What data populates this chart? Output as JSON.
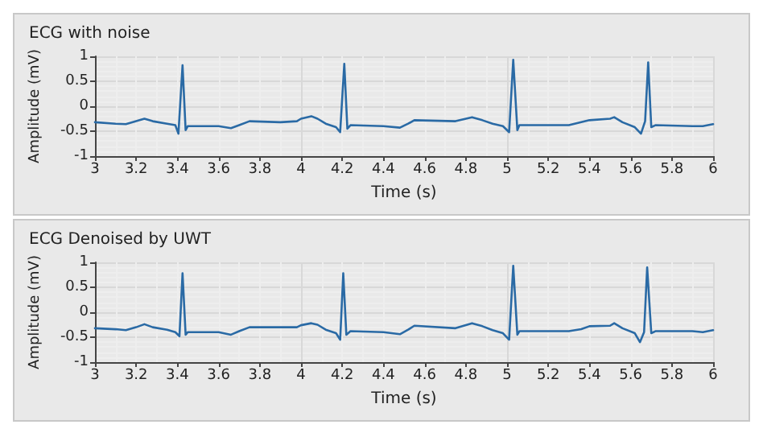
{
  "chart_data": [
    {
      "type": "line",
      "title": "ECG with noise",
      "xlabel": "Time (s)",
      "ylabel": "Amplitude (mV)",
      "xlim": [
        3,
        6
      ],
      "xticks": [
        3,
        3.2,
        3.4,
        3.6,
        3.8,
        4,
        4.2,
        4.4,
        4.6,
        4.8,
        5,
        5.2,
        5.4,
        5.6,
        5.8,
        6
      ],
      "ylim": [
        -1,
        1
      ],
      "yticks": [
        -1,
        -0.5,
        0,
        0.5,
        1
      ],
      "grid": true,
      "marker": "none",
      "line_style": "solid",
      "series": [
        {
          "color": "#2a6aa5",
          "x": [
            3.0,
            3.1,
            3.15,
            3.2,
            3.24,
            3.28,
            3.35,
            3.39,
            3.405,
            3.425,
            3.44,
            3.45,
            3.6,
            3.66,
            3.7,
            3.75,
            3.9,
            3.98,
            4.0,
            4.05,
            4.08,
            4.12,
            4.17,
            4.19,
            4.21,
            4.225,
            4.24,
            4.4,
            4.48,
            4.52,
            4.55,
            4.75,
            4.83,
            4.88,
            4.93,
            4.98,
            5.01,
            5.03,
            5.05,
            5.06,
            5.3,
            5.36,
            5.4,
            5.5,
            5.52,
            5.56,
            5.62,
            5.65,
            5.67,
            5.685,
            5.7,
            5.72,
            5.9,
            5.95,
            6.0
          ],
          "values": [
            -0.32,
            -0.35,
            -0.36,
            -0.3,
            -0.25,
            -0.3,
            -0.35,
            -0.38,
            -0.55,
            0.82,
            -0.48,
            -0.4,
            -0.4,
            -0.44,
            -0.38,
            -0.3,
            -0.32,
            -0.3,
            -0.25,
            -0.2,
            -0.25,
            -0.35,
            -0.42,
            -0.52,
            0.85,
            -0.45,
            -0.38,
            -0.4,
            -0.43,
            -0.35,
            -0.28,
            -0.3,
            -0.22,
            -0.28,
            -0.35,
            -0.4,
            -0.52,
            0.93,
            -0.48,
            -0.38,
            -0.38,
            -0.32,
            -0.28,
            -0.25,
            -0.22,
            -0.32,
            -0.42,
            -0.55,
            -0.3,
            0.88,
            -0.42,
            -0.38,
            -0.4,
            -0.4,
            -0.36
          ]
        }
      ]
    },
    {
      "type": "line",
      "title": "ECG Denoised by UWT",
      "xlabel": "Time (s)",
      "ylabel": "Amplitude (mV)",
      "xlim": [
        3,
        6
      ],
      "xticks": [
        3,
        3.2,
        3.4,
        3.6,
        3.8,
        4,
        4.2,
        4.4,
        4.6,
        4.8,
        5,
        5.2,
        5.4,
        5.6,
        5.8,
        6
      ],
      "ylim": [
        -1,
        1
      ],
      "yticks": [
        -1,
        -0.5,
        0,
        0.5,
        1
      ],
      "grid": true,
      "marker": "none",
      "line_style": "solid",
      "series": [
        {
          "color": "#2a6aa5",
          "x": [
            3.0,
            3.1,
            3.15,
            3.2,
            3.24,
            3.28,
            3.35,
            3.39,
            3.41,
            3.425,
            3.44,
            3.45,
            3.6,
            3.66,
            3.7,
            3.75,
            3.9,
            3.98,
            4.0,
            4.05,
            4.08,
            4.12,
            4.17,
            4.19,
            4.205,
            4.22,
            4.24,
            4.4,
            4.48,
            4.52,
            4.55,
            4.75,
            4.83,
            4.88,
            4.93,
            4.98,
            5.01,
            5.03,
            5.05,
            5.06,
            5.3,
            5.36,
            5.4,
            5.5,
            5.52,
            5.56,
            5.62,
            5.645,
            5.665,
            5.68,
            5.7,
            5.72,
            5.9,
            5.95,
            6.0
          ],
          "values": [
            -0.32,
            -0.34,
            -0.36,
            -0.3,
            -0.24,
            -0.3,
            -0.35,
            -0.4,
            -0.48,
            0.78,
            -0.45,
            -0.4,
            -0.4,
            -0.45,
            -0.38,
            -0.3,
            -0.3,
            -0.3,
            -0.26,
            -0.22,
            -0.25,
            -0.35,
            -0.42,
            -0.55,
            0.78,
            -0.45,
            -0.38,
            -0.4,
            -0.44,
            -0.35,
            -0.27,
            -0.32,
            -0.22,
            -0.28,
            -0.36,
            -0.42,
            -0.55,
            0.93,
            -0.45,
            -0.38,
            -0.38,
            -0.34,
            -0.28,
            -0.27,
            -0.22,
            -0.32,
            -0.42,
            -0.6,
            -0.4,
            0.9,
            -0.42,
            -0.38,
            -0.38,
            -0.4,
            -0.36
          ]
        }
      ]
    }
  ]
}
